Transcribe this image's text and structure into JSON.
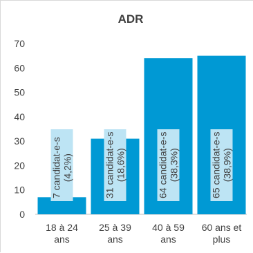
{
  "chart_data": {
    "type": "bar",
    "title": "ADR",
    "categories": [
      [
        "18 à 24",
        "ans"
      ],
      [
        "25 à 39",
        "ans"
      ],
      [
        "40 à 59",
        "ans"
      ],
      [
        "60 ans et",
        "plus"
      ]
    ],
    "values": [
      7,
      31,
      64,
      65
    ],
    "data_labels": [
      [
        "7 candidat-e-s",
        "(4,2%)"
      ],
      [
        "31 candidat-e-s",
        "(18,6%)"
      ],
      [
        "64 candidat-e-s",
        "(38,3%)"
      ],
      [
        "65 candidat-e-s",
        "(38,9%)"
      ]
    ],
    "yticks": [
      "0",
      "10",
      "20",
      "30",
      "40",
      "50",
      "60",
      "70"
    ],
    "ylim": [
      0,
      70
    ],
    "xlabel": "",
    "ylabel": "",
    "grid": false,
    "legend": "none",
    "bar_color": "#0099d4",
    "label_box_color": "#bde4f4"
  }
}
